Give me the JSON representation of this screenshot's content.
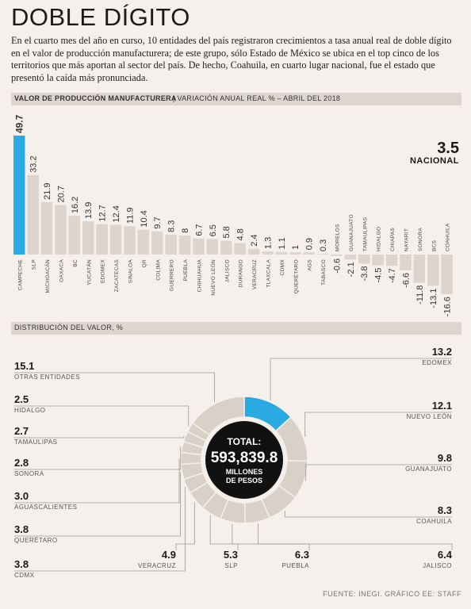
{
  "title": "DOBLE DÍGITO",
  "intro": "En el cuarto mes del año en curso, 10 entidades del país registraron crecimientos a tasa anual real de doble dígito en el valor de producción manufacturera; de este grupo, sólo Estado de México se ubica en el top cinco de los territorios que más aportan al sector del país. De hecho, Coahuila, en cuarto lugar nacional, fue el estado que presentó la caída más pronunciada.",
  "section1": {
    "title": "VALOR DE PRODUCCIÓN MANUFACTURERA",
    "subtitle": "VARIACIÓN ANUAL REAL % – ABRIL DEL 2018"
  },
  "section2": {
    "title": "DISTRIBUCIÓN DEL VALOR, %"
  },
  "footer": "FUENTE: INEGI. GRÁFICO EE: STAFF",
  "chart_data": [
    {
      "type": "bar",
      "categories": [
        "CAMPECHE",
        "SLP",
        "MICHOACÁN",
        "OAXACA",
        "BC",
        "YUCATÁN",
        "EDOMEX",
        "ZACATECAS",
        "SINALOA",
        "QR",
        "COLIMA",
        "GUERRERO",
        "PUEBLA",
        "CHIHUAHUA",
        "NUEVO LEÓN",
        "JALISCO",
        "DURANGO",
        "VERACRUZ",
        "TLAXCALA",
        "CDMX",
        "QUERÉTARO",
        "AGS",
        "TABASCO",
        "MORELOS",
        "GUANAJUATO",
        "TAMAULIPAS",
        "HIDALGO",
        "CHIAPAS",
        "NAYARIT",
        "SONORA",
        "BCS",
        "COAHUILA"
      ],
      "values": [
        49.7,
        33.2,
        21.9,
        20.7,
        16.2,
        13.9,
        12.7,
        12.4,
        11.9,
        10.4,
        9.7,
        8.3,
        8.0,
        6.7,
        6.5,
        5.8,
        4.8,
        2.4,
        1.3,
        1.1,
        1.0,
        0.9,
        0.3,
        -0.6,
        -2.1,
        -3.8,
        -4.5,
        -4.7,
        -6.6,
        -11.8,
        -13.1,
        -16.6
      ],
      "highlight": "CAMPECHE",
      "highlight_color": "#29abe2",
      "bar_color": "#ddd5cd",
      "national": {
        "value": "3.5",
        "label": "NACIONAL"
      }
    },
    {
      "type": "pie",
      "title": "TOTAL:",
      "total": "593,839.8",
      "total_unit_1": "MILLONES",
      "total_unit_2": "DE PESOS",
      "highlight_color": "#29abe2",
      "slices": [
        {
          "label": "EDOMEX",
          "value": 13.2
        },
        {
          "label": "NUEVO LEÓN",
          "value": 12.1
        },
        {
          "label": "GUANAJUATO",
          "value": 9.8
        },
        {
          "label": "COAHUILA",
          "value": 8.3
        },
        {
          "label": "JALISCO",
          "value": 6.4
        },
        {
          "label": "PUEBLA",
          "value": 6.3
        },
        {
          "label": "SLP",
          "value": 5.3
        },
        {
          "label": "VERACRUZ",
          "value": 4.9
        },
        {
          "label": "CDMX",
          "value": 3.8
        },
        {
          "label": "QUERÉTARO",
          "value": 3.8
        },
        {
          "label": "AGUASCALIENTES",
          "value": 3.0
        },
        {
          "label": "SONORA",
          "value": 2.8
        },
        {
          "label": "TAMAULIPAS",
          "value": 2.7
        },
        {
          "label": "HIDALGO",
          "value": 2.5
        },
        {
          "label": "OTRAS ENTIDADES",
          "value": 15.1
        }
      ]
    }
  ]
}
